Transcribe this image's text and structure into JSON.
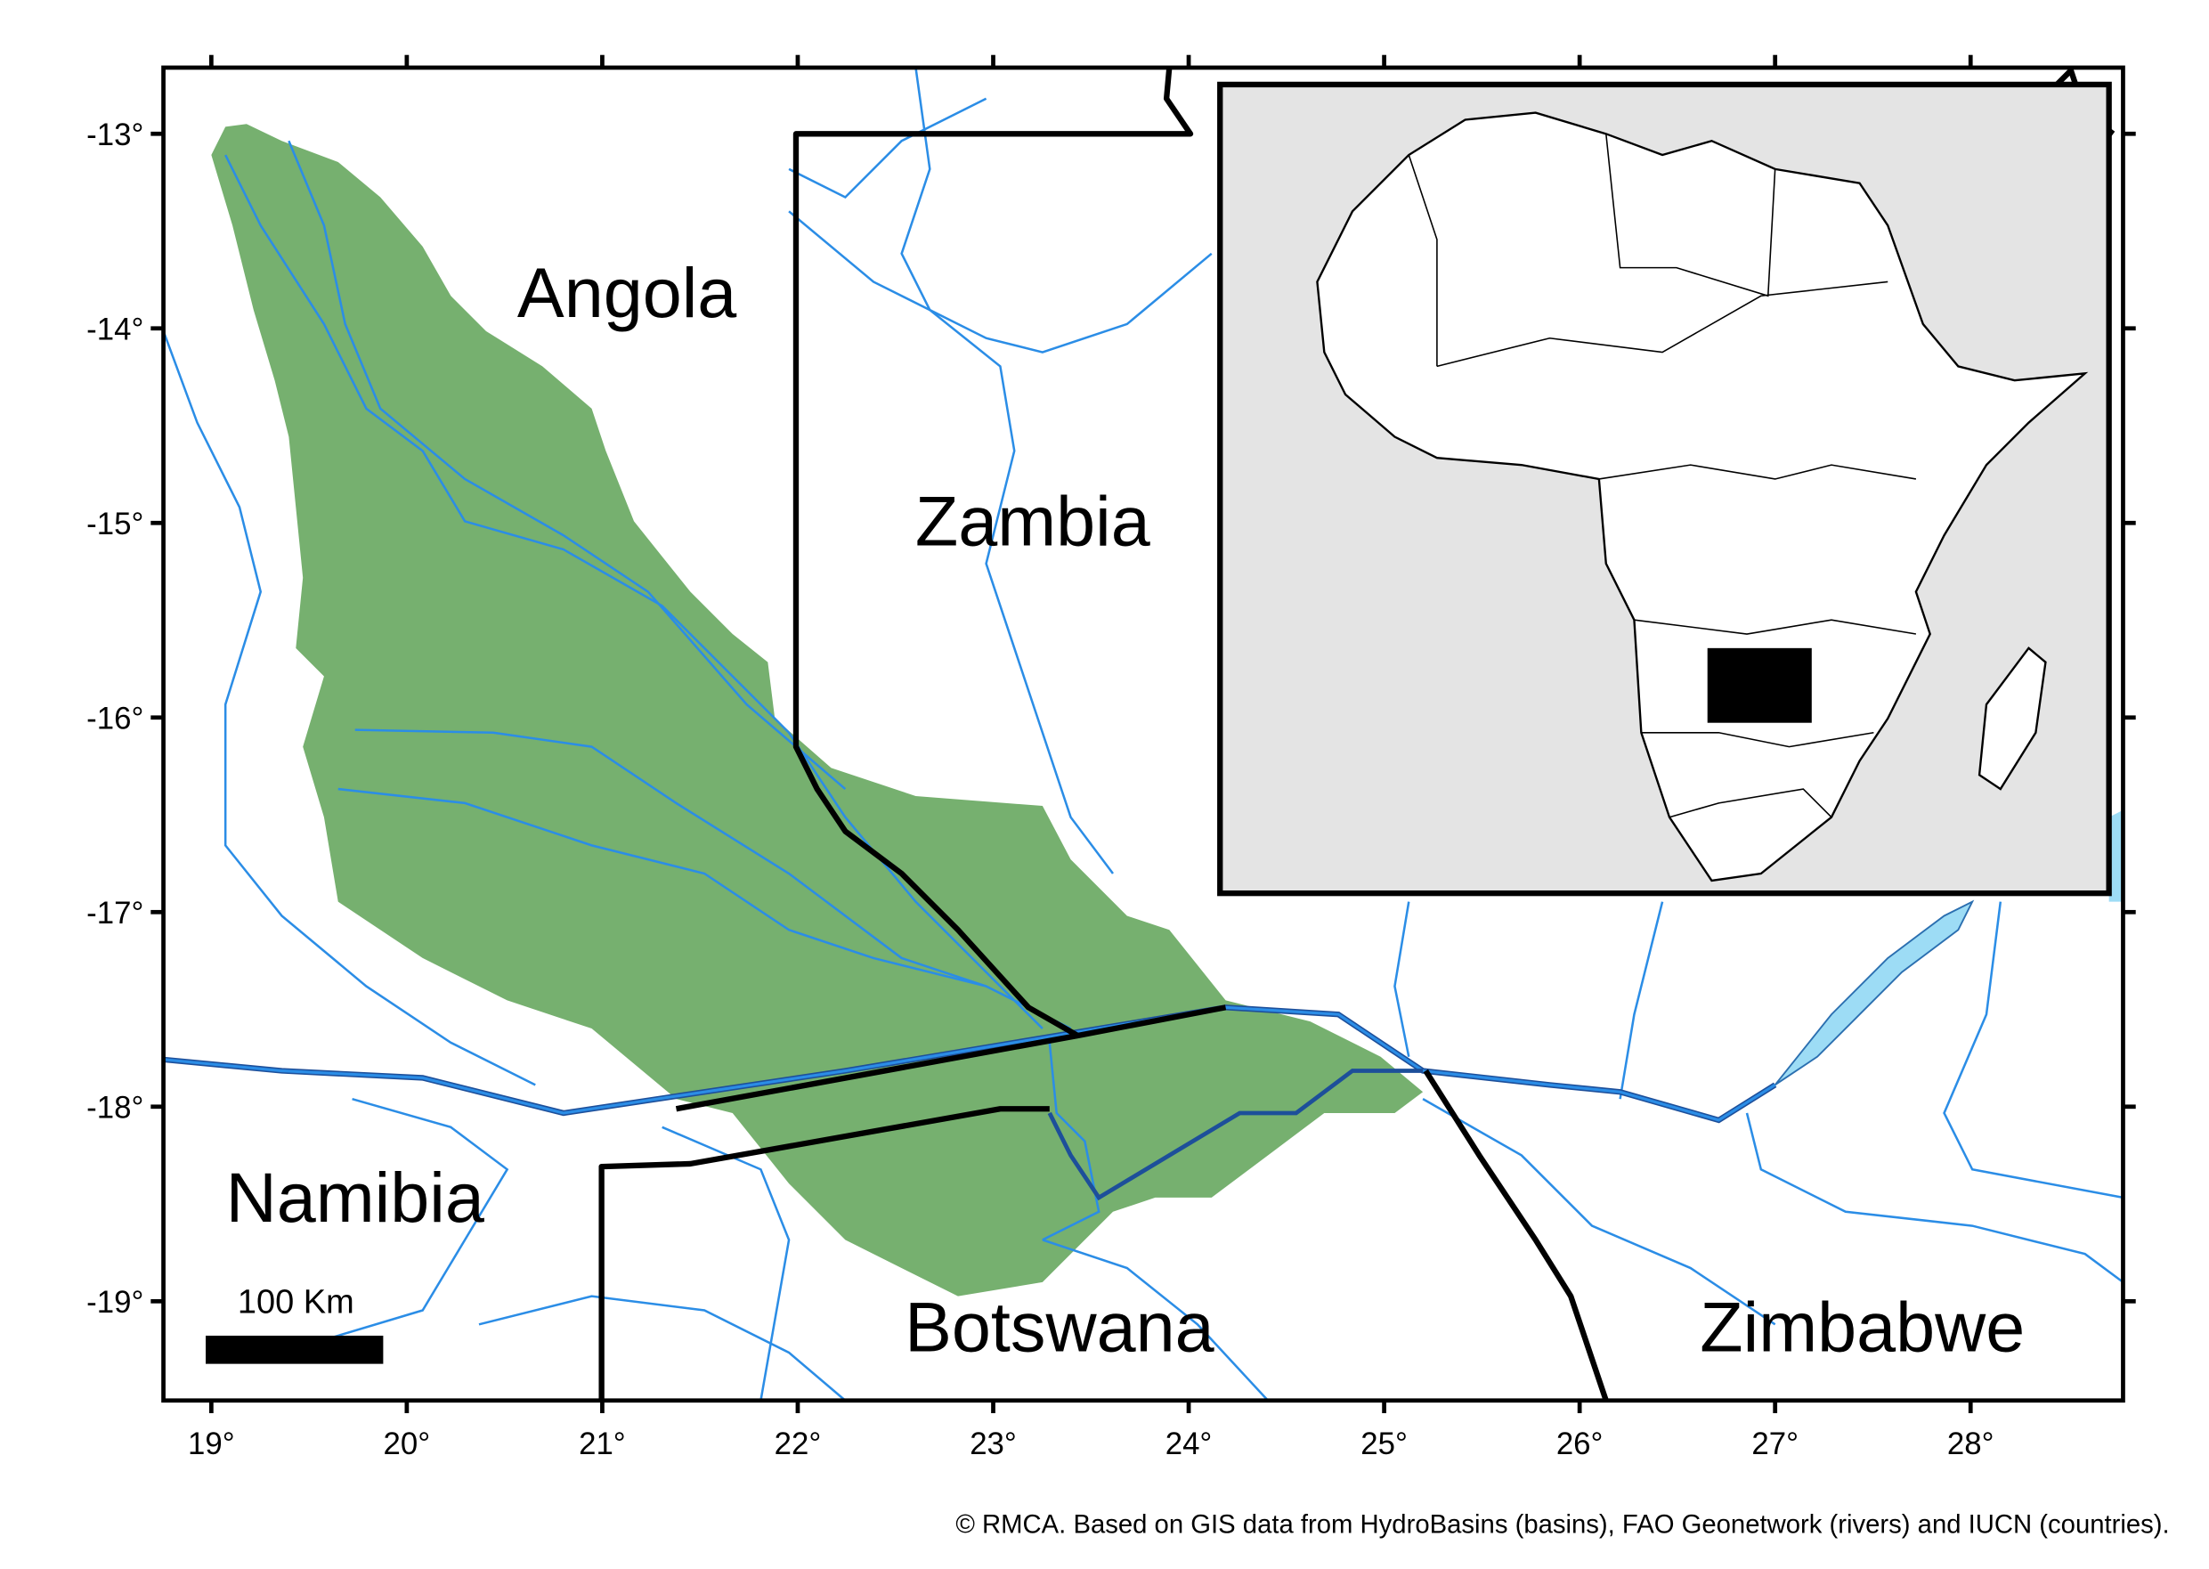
{
  "map": {
    "countries": [
      "Angola",
      "Zambia",
      "Namibia",
      "Botswana",
      "Zimbabwe"
    ],
    "scale_bar_label": "100 Km",
    "credit": "© RMCA. Based on GIS data from HydroBasins (basins), FAO Geonetwork (rivers) and IUCN (countries).",
    "xlim": [
      18.755,
      28.78
    ],
    "ylim": [
      -19.51,
      -12.66
    ],
    "xticks": [
      {
        "value": 19,
        "label": "19°"
      },
      {
        "value": 20,
        "label": "20°"
      },
      {
        "value": 21,
        "label": "21°"
      },
      {
        "value": 22,
        "label": "22°"
      },
      {
        "value": 23,
        "label": "23°"
      },
      {
        "value": 24,
        "label": "24°"
      },
      {
        "value": 25,
        "label": "25°"
      },
      {
        "value": 26,
        "label": "26°"
      },
      {
        "value": 27,
        "label": "27°"
      },
      {
        "value": 28,
        "label": "28°"
      }
    ],
    "yticks": [
      {
        "value": -13,
        "label": "-13°"
      },
      {
        "value": -14,
        "label": "-14°"
      },
      {
        "value": -15,
        "label": "-15°"
      },
      {
        "value": -16,
        "label": "-16°"
      },
      {
        "value": -17,
        "label": "-17°"
      },
      {
        "value": -18,
        "label": "-18°"
      },
      {
        "value": -19,
        "label": "-19°"
      }
    ]
  }
}
